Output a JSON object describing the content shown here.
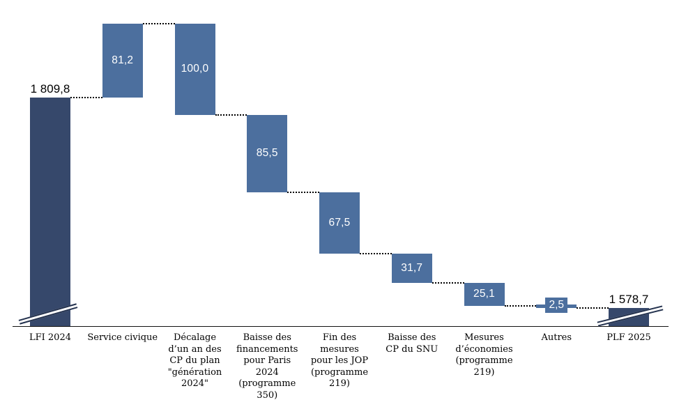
{
  "chart_data": {
    "type": "bar",
    "subtype": "waterfall",
    "title": "",
    "value_format": "french (espace milliers, virgule décimale)",
    "start_value": 1809.8,
    "end_value": 1578.7,
    "gridlines": false,
    "legend": null,
    "axis_breaks_on_totals": true,
    "columns": [
      {
        "role": "total",
        "label": "LFI 2024",
        "label_lines": [
          "LFI 2024"
        ],
        "value": 1809.8,
        "display": "1 809,8"
      },
      {
        "role": "increase",
        "label": "Service civique",
        "label_lines": [
          "Service civique"
        ],
        "value": 81.2,
        "display": "81,2"
      },
      {
        "role": "decrease",
        "label": "Décalage d’un an des CP du plan \"génération 2024\"",
        "label_lines": [
          "Décalage",
          "d’un an des",
          "CP du plan",
          "\"génération",
          "2024\""
        ],
        "value": 100.0,
        "display": "100,0"
      },
      {
        "role": "decrease",
        "label": "Baisse des financements pour Paris 2024 (programme 350)",
        "label_lines": [
          "Baisse des",
          "financements",
          "pour Paris",
          "2024",
          "(programme",
          "350)"
        ],
        "value": 85.5,
        "display": "85,5"
      },
      {
        "role": "decrease",
        "label": "Fin des mesures pour les JOP (programme 219)",
        "label_lines": [
          "Fin des",
          "mesures",
          "pour les JOP",
          "(programme",
          "219)"
        ],
        "value": 67.5,
        "display": "67,5"
      },
      {
        "role": "decrease",
        "label": "Baisse des CP du SNU",
        "label_lines": [
          "Baisse des",
          "CP du SNU"
        ],
        "value": 31.7,
        "display": "31,7"
      },
      {
        "role": "decrease",
        "label": "Mesures d’économies (programme 219)",
        "label_lines": [
          "Mesures",
          "d’économies",
          "(programme",
          "219)"
        ],
        "value": 25.1,
        "display": "25,1"
      },
      {
        "role": "decrease",
        "label": "Autres",
        "label_lines": [
          "Autres"
        ],
        "value": 2.5,
        "display": "2,5"
      },
      {
        "role": "total",
        "label": "PLF 2025",
        "label_lines": [
          "PLF 2025"
        ],
        "value": 1578.7,
        "display": "1 578,7"
      }
    ],
    "colors": {
      "total_bar": "#36486B",
      "delta_bar": "#4C6F9E",
      "bar_value_text": "#FFFFFF",
      "total_value_text": "#000000",
      "connector": "#000000",
      "axis": "#111111",
      "break_marker": "#24324E",
      "background": "#FFFFFF"
    }
  }
}
